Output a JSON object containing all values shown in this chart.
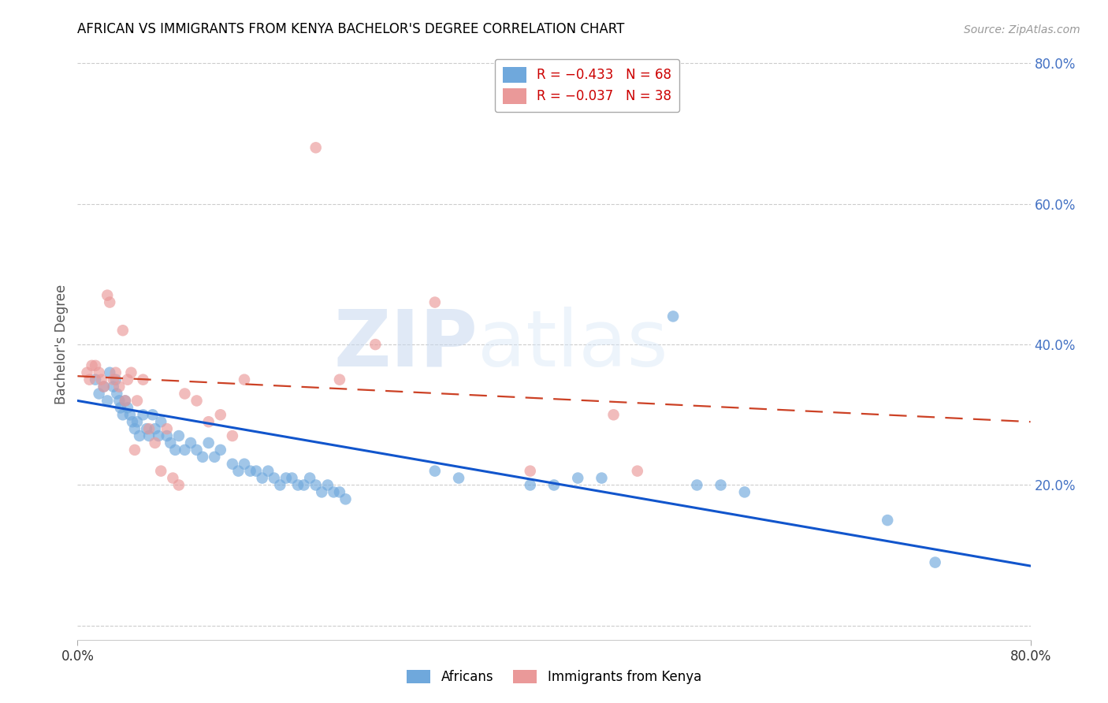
{
  "title": "AFRICAN VS IMMIGRANTS FROM KENYA BACHELOR'S DEGREE CORRELATION CHART",
  "source": "Source: ZipAtlas.com",
  "ylabel": "Bachelor's Degree",
  "xmin": 0.0,
  "xmax": 0.8,
  "ymin": -0.02,
  "ymax": 0.82,
  "watermark_zip": "ZIP",
  "watermark_atlas": "atlas",
  "legend_r1": "R = −0.433   N = 68",
  "legend_r2": "R = −0.037   N = 38",
  "africans_x": [
    0.015,
    0.018,
    0.022,
    0.025,
    0.027,
    0.03,
    0.032,
    0.033,
    0.035,
    0.036,
    0.038,
    0.04,
    0.042,
    0.044,
    0.046,
    0.048,
    0.05,
    0.052,
    0.055,
    0.058,
    0.06,
    0.063,
    0.065,
    0.068,
    0.07,
    0.075,
    0.078,
    0.082,
    0.085,
    0.09,
    0.095,
    0.1,
    0.105,
    0.11,
    0.115,
    0.12,
    0.13,
    0.135,
    0.14,
    0.145,
    0.15,
    0.155,
    0.16,
    0.165,
    0.17,
    0.175,
    0.18,
    0.185,
    0.19,
    0.195,
    0.2,
    0.205,
    0.21,
    0.215,
    0.22,
    0.225,
    0.3,
    0.32,
    0.38,
    0.4,
    0.42,
    0.44,
    0.5,
    0.52,
    0.54,
    0.56,
    0.68,
    0.72
  ],
  "africans_y": [
    0.35,
    0.33,
    0.34,
    0.32,
    0.36,
    0.34,
    0.35,
    0.33,
    0.32,
    0.31,
    0.3,
    0.32,
    0.31,
    0.3,
    0.29,
    0.28,
    0.29,
    0.27,
    0.3,
    0.28,
    0.27,
    0.3,
    0.28,
    0.27,
    0.29,
    0.27,
    0.26,
    0.25,
    0.27,
    0.25,
    0.26,
    0.25,
    0.24,
    0.26,
    0.24,
    0.25,
    0.23,
    0.22,
    0.23,
    0.22,
    0.22,
    0.21,
    0.22,
    0.21,
    0.2,
    0.21,
    0.21,
    0.2,
    0.2,
    0.21,
    0.2,
    0.19,
    0.2,
    0.19,
    0.19,
    0.18,
    0.22,
    0.21,
    0.2,
    0.2,
    0.21,
    0.21,
    0.44,
    0.2,
    0.2,
    0.19,
    0.15,
    0.09
  ],
  "kenya_x": [
    0.008,
    0.01,
    0.012,
    0.015,
    0.018,
    0.02,
    0.022,
    0.025,
    0.027,
    0.03,
    0.032,
    0.035,
    0.038,
    0.04,
    0.042,
    0.045,
    0.048,
    0.05,
    0.055,
    0.06,
    0.065,
    0.07,
    0.075,
    0.08,
    0.085,
    0.09,
    0.1,
    0.11,
    0.12,
    0.13,
    0.14,
    0.2,
    0.22,
    0.25,
    0.3,
    0.38,
    0.45,
    0.47
  ],
  "kenya_y": [
    0.36,
    0.35,
    0.37,
    0.37,
    0.36,
    0.35,
    0.34,
    0.47,
    0.46,
    0.35,
    0.36,
    0.34,
    0.42,
    0.32,
    0.35,
    0.36,
    0.25,
    0.32,
    0.35,
    0.28,
    0.26,
    0.22,
    0.28,
    0.21,
    0.2,
    0.33,
    0.32,
    0.29,
    0.3,
    0.27,
    0.35,
    0.68,
    0.35,
    0.4,
    0.46,
    0.22,
    0.3,
    0.22
  ],
  "africans_color": "#6fa8dc",
  "kenya_color": "#ea9999",
  "africans_line_color": "#1155cc",
  "kenya_line_color": "#cc4125",
  "grid_color": "#cccccc",
  "background_color": "#ffffff",
  "title_color": "#000000",
  "right_tick_color": "#4472c4",
  "source_color": "#999999",
  "africans_line_start_y": 0.32,
  "africans_line_end_y": 0.085,
  "kenya_line_start_y": 0.355,
  "kenya_line_end_y": 0.29
}
